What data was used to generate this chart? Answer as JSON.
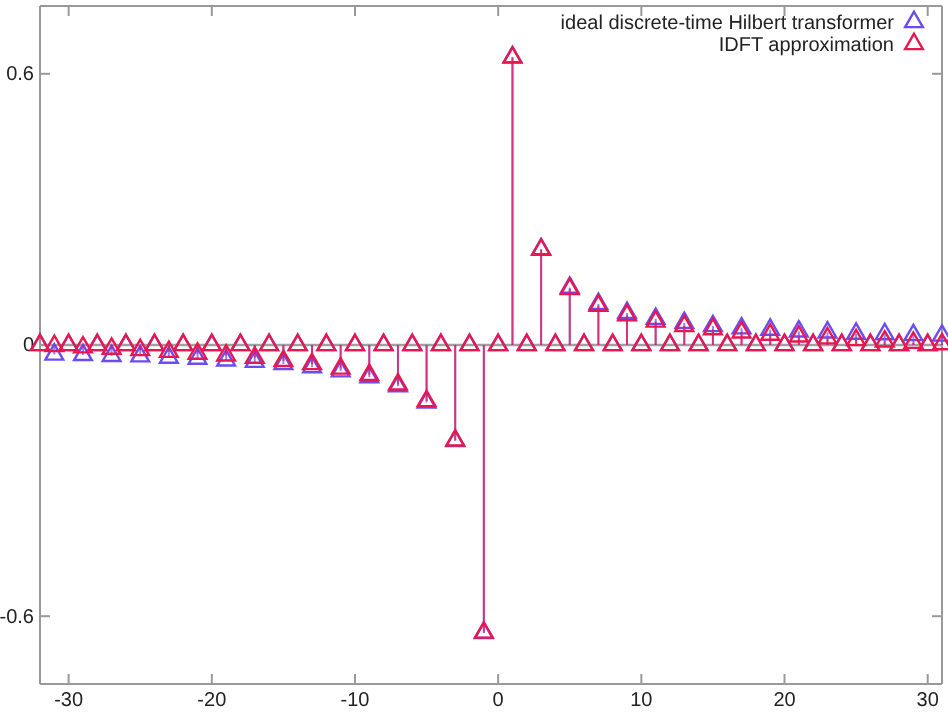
{
  "chart_data": {
    "type": "lollipop",
    "x": [
      -32,
      -31,
      -30,
      -29,
      -28,
      -27,
      -26,
      -25,
      -24,
      -23,
      -22,
      -21,
      -20,
      -19,
      -18,
      -17,
      -16,
      -15,
      -14,
      -13,
      -12,
      -11,
      -10,
      -9,
      -8,
      -7,
      -6,
      -5,
      -4,
      -3,
      -2,
      -1,
      0,
      1,
      2,
      3,
      4,
      5,
      6,
      7,
      8,
      9,
      10,
      11,
      12,
      13,
      14,
      15,
      16,
      17,
      18,
      19,
      20,
      21,
      22,
      23,
      24,
      25,
      26,
      27,
      28,
      29,
      30,
      31
    ],
    "series": [
      {
        "name": "ideal discrete-time Hilbert transformer",
        "color": "#6a4cf0",
        "values": [
          0,
          -0.021,
          0,
          -0.022,
          0,
          -0.024,
          0,
          -0.025,
          0,
          -0.028,
          0,
          -0.03,
          0,
          -0.034,
          0,
          -0.037,
          0,
          -0.042,
          0,
          -0.049,
          0,
          -0.058,
          0,
          -0.071,
          0,
          -0.091,
          0,
          -0.127,
          0,
          -0.212,
          0,
          -0.637,
          0,
          0.637,
          0,
          0.212,
          0,
          0.127,
          0,
          0.091,
          0,
          0.071,
          0,
          0.058,
          0,
          0.049,
          0,
          0.042,
          0,
          0.037,
          0,
          0.034,
          0,
          0.03,
          0,
          0.028,
          0,
          0.025,
          0,
          0.024,
          0,
          0.022,
          0,
          0.021
        ]
      },
      {
        "name": "IDFT approximation",
        "color": "#e8174f",
        "values": [
          0,
          -0.002,
          0,
          -0.005,
          0,
          -0.008,
          0,
          -0.011,
          0,
          -0.015,
          0,
          -0.019,
          0,
          -0.023,
          0,
          -0.028,
          0,
          -0.035,
          0,
          -0.042,
          0,
          -0.052,
          0,
          -0.066,
          0,
          -0.087,
          0,
          -0.124,
          0,
          -0.211,
          0,
          -0.636,
          0,
          0.636,
          0,
          0.211,
          0,
          0.124,
          0,
          0.087,
          0,
          0.066,
          0,
          0.052,
          0,
          0.042,
          0,
          0.035,
          0,
          0.028,
          0,
          0.023,
          0,
          0.019,
          0,
          0.015,
          0,
          0.011,
          0,
          0.008,
          0,
          0.005,
          0,
          0.002
        ]
      }
    ],
    "xlim": [
      -32,
      31
    ],
    "xticks": [
      -30,
      -20,
      -10,
      0,
      10,
      20,
      30
    ],
    "ylim": [
      -0.75,
      0.75
    ],
    "yticks": [
      -0.6,
      0,
      0.6
    ],
    "ref_lines": [
      {
        "axis": "y",
        "value": 0,
        "color": "#a0a0a0"
      }
    ],
    "marker": "triangle",
    "legend": "top right",
    "grid": false
  }
}
